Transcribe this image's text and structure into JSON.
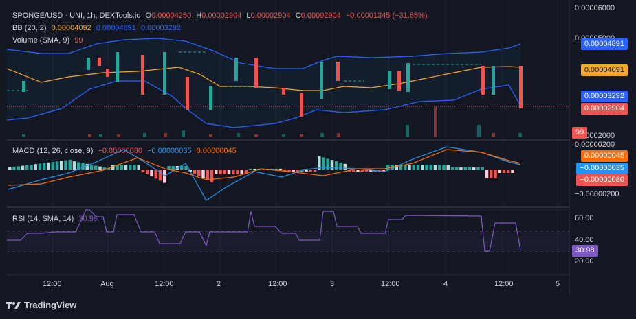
{
  "header": {
    "symbol": "SPONGE/USD · UNI, 1h, DEXTools.io",
    "o_label": "O",
    "o_value": "0.00004250",
    "h_label": "H",
    "h_value": "0.00002904",
    "l_label": "L",
    "l_value": "0.00002904",
    "c_label": "C",
    "c_value": "0.00002904",
    "change": "−0.00001345 (−31.65%)"
  },
  "bb_legend": {
    "label": "BB (20, 2)",
    "basis": "0.00004092",
    "upper": "0.00004891",
    "lower": "0.00003292"
  },
  "volume_legend": {
    "label": "Volume (SMA, 9)",
    "value": "99"
  },
  "macd_legend": {
    "label": "MACD (12, 26, close, 9)",
    "hist": "−0.00000080",
    "macd": "−0.00000035",
    "signal": "0.00000045"
  },
  "rsi_legend": {
    "label": "RSI (14, SMA, 14)",
    "value": "30.98"
  },
  "price_axis": {
    "ticks": [
      "0.00006000",
      "0.00005000",
      "0.00002000"
    ],
    "tags": {
      "upper": "0.00004891",
      "basis": "0.00004091",
      "lower": "0.00003292",
      "close": "0.00002904",
      "volume": "99"
    }
  },
  "macd_axis": {
    "ticks": [
      "0.00000200",
      "−0.00000200"
    ],
    "tags": {
      "signal": "0.00000045",
      "macd": "−0.00000035",
      "hist": "−0.00000080"
    }
  },
  "rsi_axis": {
    "ticks": [
      "60.00",
      "40.00",
      "20.00"
    ],
    "tag": "30.98"
  },
  "time_axis": [
    "12:00",
    "Aug",
    "12:00",
    "2",
    "12:00",
    "3",
    "12:00",
    "4",
    "12:00",
    "5"
  ],
  "brand": "TradingView",
  "colors": {
    "up": "#26a69a",
    "down": "#ef5350",
    "bb": "#2962ff",
    "basis": "#f9a825",
    "macd": "#2196f3",
    "signal": "#ff6d00",
    "rsi": "#7e57c2"
  },
  "chart_data": [
    {
      "type": "candlestick",
      "title": "SPONGE/USD · UNI, 1h, DEXTools.io",
      "y_range": [
        2e-05,
        6e-05
      ],
      "x_labels": [
        "12:00",
        "Aug",
        "12:00",
        "2",
        "12:00",
        "3",
        "12:00",
        "4",
        "12:00",
        "5"
      ],
      "candles": [
        [
          3.75e-05,
          3.75e-05,
          3.75e-05,
          3.75e-05
        ],
        [
          3.75e-05,
          3.75e-05,
          3.75e-05,
          3.75e-05
        ],
        [
          3.75e-05,
          3.75e-05,
          3.75e-05,
          3.75e-05
        ],
        [
          3.75e-05,
          4.1e-05,
          3.75e-05,
          4.05e-05
        ],
        [
          4.05e-05,
          4.05e-05,
          4.05e-05,
          4.05e-05
        ],
        [
          4.05e-05,
          4.05e-05,
          4.05e-05,
          4.05e-05
        ],
        [
          4.05e-05,
          4.05e-05,
          4.05e-05,
          4.05e-05
        ],
        [
          4.05e-05,
          4.05e-05,
          4.05e-05,
          4.05e-05
        ],
        [
          4.05e-05,
          4.05e-05,
          4.05e-05,
          4.05e-05
        ],
        [
          4.05e-05,
          4.05e-05,
          4.05e-05,
          4.05e-05
        ],
        [
          4.05e-05,
          4.05e-05,
          4.05e-05,
          4.05e-05
        ],
        [
          4.05e-05,
          4.05e-05,
          4.05e-05,
          4.05e-05
        ],
        [
          4.05e-05,
          4.05e-05,
          4.05e-05,
          4.05e-05
        ],
        [
          4.05e-05,
          4.05e-05,
          4.05e-05,
          4.05e-05
        ],
        [
          4.05e-05,
          4.05e-05,
          4.05e-05,
          4.05e-05
        ],
        [
          4.05e-05,
          4.05e-05,
          4.05e-05,
          4.05e-05
        ],
        [
          4.05e-05,
          4.05e-05,
          4.05e-05,
          4.05e-05
        ],
        [
          4.05e-05,
          4.05e-05,
          4.05e-05,
          4.05e-05
        ],
        [
          4.05e-05,
          4.05e-05,
          4.05e-05,
          4.05e-05
        ],
        [
          4.05e-05,
          4.3e-05,
          4.05e-05,
          4.3e-05
        ],
        [
          4.3e-05,
          4.3e-05,
          4.3e-05,
          4.3e-05
        ],
        [
          4.3e-05,
          4.3e-05,
          4.3e-05,
          4.3e-05
        ],
        [
          4.3e-05,
          4.45e-05,
          4.3e-05,
          4.45e-05
        ],
        [
          4.45e-05,
          4.45e-05,
          4.45e-05,
          4.45e-05
        ],
        [
          4.45e-05,
          4.45e-05,
          4.3e-05,
          4.3e-05
        ],
        [
          4.3e-05,
          4.3e-05,
          4.3e-05,
          4.3e-05
        ],
        [
          4.3e-05,
          4.3e-05,
          4.2e-05,
          4.2e-05
        ],
        [
          4.2e-05,
          4.2e-05,
          4.2e-05,
          4.2e-05
        ],
        [
          4.2e-05,
          4.2e-05,
          4.2e-05,
          4.2e-05
        ],
        [
          4.2e-05,
          4.2e-05,
          4.2e-05,
          4.2e-05
        ],
        [
          4.2e-05,
          4.2e-05,
          4.2e-05,
          4.2e-05
        ],
        [
          4.2e-05,
          4.7e-05,
          4.2e-05,
          4.7e-05
        ],
        [
          4.7e-05,
          4.7e-05,
          4.7e-05,
          4.7e-05
        ],
        [
          4.7e-05,
          4.7e-05,
          4.7e-05,
          4.7e-05
        ],
        [
          4.7e-05,
          4.7e-05,
          4.7e-05,
          4.7e-05
        ],
        [
          4.7e-05,
          4.7e-05,
          4.7e-05,
          4.7e-05
        ],
        [
          4.7e-05,
          4.7e-05,
          4.7e-05,
          4.7e-05
        ],
        [
          4.7e-05,
          4.7e-05,
          4.1e-05,
          4.1e-05
        ],
        [
          4.1e-05,
          4.1e-05,
          4.1e-05,
          4.1e-05
        ],
        [
          4.1e-05,
          4.1e-05,
          4.1e-05,
          4.1e-05
        ],
        [
          4.1e-05,
          4.1e-05,
          4.1e-05,
          4.1e-05
        ],
        [
          4.1e-05,
          4.1e-05,
          4.1e-05,
          4.1e-05
        ],
        [
          4.1e-05,
          4.1e-05,
          4.1e-05,
          4.1e-05
        ],
        [
          4.1e-05,
          4.1e-05,
          3.8e-05,
          3.8e-05
        ],
        [
          3.8e-05,
          3.8e-05,
          3.8e-05,
          3.8e-05
        ],
        [
          3.8e-05,
          3.8e-05,
          3.8e-05,
          3.8e-05
        ],
        [
          3.8e-05,
          3.8e-05,
          3.8e-05,
          3.8e-05
        ],
        [
          3.8e-05,
          3.8e-05,
          3.8e-05,
          3.8e-05
        ],
        [
          3.8e-05,
          4.7e-05,
          3.8e-05,
          4.7e-05
        ],
        [
          4.7e-05,
          4.7e-05,
          4.7e-05,
          4.7e-05
        ],
        [
          4.7e-05,
          4.7e-05,
          4.7e-05,
          4.7e-05
        ],
        [
          4.7e-05,
          4.7e-05,
          4.7e-05,
          4.7e-05
        ],
        [
          4.7e-05,
          4.7e-05,
          4.7e-05,
          4.7e-05
        ],
        [
          4.7e-05,
          4.7e-05,
          4.7e-05,
          4.7e-05
        ],
        [
          4.7e-05,
          4.7e-05,
          4.7e-05,
          4.7e-05
        ],
        [
          4.7e-05,
          4.7e-05,
          4.7e-05,
          4.7e-05
        ],
        [
          4.7e-05,
          4.7e-05,
          4.7e-05,
          4.7e-05
        ],
        [
          4.7e-05,
          4.7e-05,
          3.55e-05,
          3.55e-05
        ],
        [
          3.55e-05,
          3.55e-05,
          3.55e-05,
          3.55e-05
        ],
        [
          3.55e-05,
          3.55e-05,
          3.55e-05,
          3.55e-05
        ],
        [
          3.55e-05,
          3.55e-05,
          3.55e-05,
          3.55e-05
        ],
        [
          3.55e-05,
          3.55e-05,
          3.55e-05,
          3.55e-05
        ],
        [
          3.55e-05,
          3.55e-05,
          3.55e-05,
          3.55e-05
        ],
        [
          3.55e-05,
          3.55e-05,
          3.55e-05,
          3.55e-05
        ],
        [
          3.55e-05,
          3.55e-05,
          3.55e-05,
          3.55e-05
        ],
        [
          3.55e-05,
          3.55e-05,
          3.55e-05,
          3.55e-05
        ],
        [
          3.55e-05,
          3.55e-05,
          3.55e-05,
          3.55e-05
        ],
        [
          3.55e-05,
          3.55e-05,
          3.1e-05,
          3.1e-05
        ],
        [
          3.1e-05,
          3.1e-05,
          3.1e-05,
          3.1e-05
        ],
        [
          3.1e-05,
          3.1e-05,
          3.1e-05,
          3.1e-05
        ],
        [
          3.1e-05,
          3.1e-05,
          3.1e-05,
          3.1e-05
        ],
        [
          3.1e-05,
          3.1e-05,
          3.1e-05,
          3.1e-05
        ],
        [
          3.1e-05,
          3.1e-05,
          3.1e-05,
          3.1e-05
        ],
        [
          3.1e-05,
          3.9e-05,
          3.1e-05,
          3.9e-05
        ],
        [
          3.9e-05,
          3.9e-05,
          3.9e-05,
          3.9e-05
        ],
        [
          3.9e-05,
          3.9e-05,
          3.9e-05,
          3.9e-05
        ],
        [
          3.9e-05,
          3.9e-05,
          3.9e-05,
          3.9e-05
        ],
        [
          3.9e-05,
          3.9e-05,
          3.9e-05,
          3.9e-05
        ],
        [
          3.9e-05,
          3.9e-05,
          3.9e-05,
          3.9e-05
        ],
        [
          3.9e-05,
          3.9e-05,
          3.9e-05,
          3.9e-05
        ],
        [
          3.9e-05,
          3.9e-05,
          3.9e-05,
          3.9e-05
        ],
        [
          3.9e-05,
          3.9e-05,
          3.9e-05,
          3.9e-05
        ],
        [
          3.9e-05,
          3.9e-05,
          3.9e-05,
          3.9e-05
        ],
        [
          3.9e-05,
          3.9e-05,
          3.9e-05,
          3.9e-05
        ],
        [
          3.9e-05,
          3.9e-05,
          3.9e-05,
          3.9e-05
        ],
        [
          3.9e-05,
          3.9e-05,
          3.9e-05,
          3.9e-05
        ],
        [
          3.9e-05,
          3.9e-05,
          3.9e-05,
          3.9e-05
        ],
        [
          3.9e-05,
          4.55e-05,
          3.9e-05,
          4.55e-05
        ],
        [
          4.55e-05,
          4.55e-05,
          4.55e-05,
          4.55e-05
        ],
        [
          4.55e-05,
          4.55e-05,
          4.55e-05,
          4.55e-05
        ],
        [
          4.55e-05,
          4.55e-05,
          4.55e-05,
          4.55e-05
        ],
        [
          4.55e-05,
          4.55e-05,
          4.55e-05,
          4.55e-05
        ],
        [
          4.55e-05,
          4.55e-05,
          4.55e-05,
          4.55e-05
        ],
        [
          4.55e-05,
          4.55e-05,
          4.55e-05,
          4.55e-05
        ],
        [
          4.55e-05,
          4.55e-05,
          4.55e-05,
          4.55e-05
        ],
        [
          4.55e-05,
          4.55e-05,
          4.55e-05,
          4.55e-05
        ],
        [
          4.55e-05,
          4.55e-05,
          3.85e-05,
          3.85e-05
        ],
        [
          3.85e-05,
          3.85e-05,
          3.85e-05,
          3.85e-05
        ],
        [
          3.85e-05,
          3.85e-05,
          3.85e-05,
          3.85e-05
        ],
        [
          3.85e-05,
          3.85e-05,
          3.85e-05,
          3.85e-05
        ],
        [
          3.85e-05,
          3.85e-05,
          3.85e-05,
          3.85e-05
        ],
        [
          3.85e-05,
          3.85e-05,
          3.85e-05,
          3.85e-05
        ],
        [
          3.85e-05,
          3.85e-05,
          3.85e-05,
          3.85e-05
        ],
        [
          3.85e-05,
          3.85e-05,
          3.8e-05,
          3.8e-05
        ],
        [
          3.8e-05,
          3.8e-05,
          3.8e-05,
          3.8e-05
        ],
        [
          3.8e-05,
          3.8e-05,
          3.8e-05,
          3.8e-05
        ],
        [
          3.8e-05,
          3.8e-05,
          3.8e-05,
          3.8e-05
        ],
        [
          3.8e-05,
          3.8e-05,
          3.8e-05,
          3.8e-05
        ],
        [
          3.8e-05,
          3.8e-05,
          3.8e-05,
          3.8e-05
        ],
        [
          3.8e-05,
          3.8e-05,
          3.6e-05,
          3.6e-05
        ],
        [
          3.6e-05,
          3.6e-05,
          3.6e-05,
          3.6e-05
        ],
        [
          3.6e-05,
          3.6e-05,
          3.6e-05,
          3.6e-05
        ],
        [
          3.6e-05,
          3.6e-05,
          3.6e-05,
          3.6e-05
        ],
        [
          3.6e-05,
          3.6e-05,
          3.6e-05,
          3.6e-05
        ],
        [
          3.6e-05,
          3.6e-05,
          3.6e-05,
          3.6e-05
        ],
        [
          3.6e-05,
          3.6e-05,
          3.6e-05,
          3.6e-05
        ],
        [
          3.6e-05,
          3.6e-05,
          3.6e-05,
          3.6e-05
        ],
        [
          3.6e-05,
          3.6e-05,
          3.6e-05,
          3.6e-05
        ],
        [
          3.6e-05,
          3.6e-05,
          3.6e-05,
          3.6e-05
        ],
        [
          3.6e-05,
          3.6e-05,
          3.6e-05,
          3.6e-05
        ],
        [
          3.6e-05,
          3.6e-05,
          3.6e-05,
          3.6e-05
        ],
        [
          3.6e-05,
          3.6e-05,
          3.6e-05,
          3.6e-05
        ],
        [
          3.6e-05,
          3.6e-05,
          3.6e-05,
          3.6e-05
        ],
        [
          3.6e-05,
          3.6e-05,
          3.6e-05,
          3.6e-05
        ],
        [
          3.6e-05,
          3.6e-05,
          3.6e-05,
          3.6e-05
        ],
        [
          3.6e-05,
          3.6e-05,
          3.6e-05,
          3.6e-05
        ],
        [
          3.6e-05,
          3.6e-05,
          3.6e-05,
          3.6e-05
        ],
        [
          3.6e-05,
          3.6e-05,
          3.6e-05,
          3.6e-05
        ],
        [
          3.6e-05,
          3.6e-05,
          3.6e-05,
          3.6e-05
        ],
        [
          3.6e-05,
          3.6e-05,
          3.6e-05,
          3.6e-05
        ],
        [
          3.6e-05,
          3.6e-05,
          3.6e-05,
          3.6e-05
        ],
        [
          3.6e-05,
          3.6e-05,
          3.6e-05,
          3.6e-05
        ],
        [
          3.6e-05,
          3.6e-05,
          3.6e-05,
          3.6e-05
        ],
        [
          3.6e-05,
          3.6e-05,
          3.6e-05,
          3.6e-05
        ]
      ],
      "candles_note_keys": [
        "open",
        "high",
        "low",
        "close"
      ],
      "bollinger": {
        "basis": 4.092e-05,
        "upper": 4.891e-05,
        "lower": 3.292e-05
      },
      "last_close": 2.904e-05
    },
    {
      "type": "bar",
      "title": "Volume (SMA, 9)",
      "last_value": 99
    },
    {
      "type": "bar",
      "title": "MACD (12, 26, close, 9)",
      "y_range": [
        -4e-06,
        3e-06
      ],
      "histogram_last": -8e-07,
      "macd_last": -3.5e-07,
      "signal_last": 4.5e-07
    },
    {
      "type": "line",
      "title": "RSI (14, SMA, 14)",
      "y_range": [
        10,
        70
      ],
      "bands": [
        30,
        50,
        70
      ],
      "last_value": 30.98
    }
  ]
}
